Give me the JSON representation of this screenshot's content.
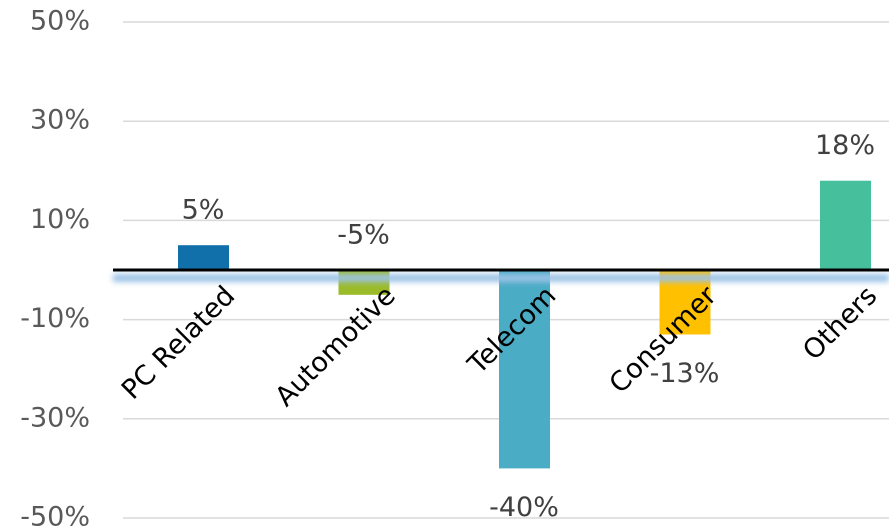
{
  "chart_data": {
    "type": "bar",
    "categories": [
      "PC Related",
      "Automotive",
      "Telecom",
      "Consumer",
      "Others"
    ],
    "values": [
      5,
      -5,
      -40,
      -13,
      18
    ],
    "value_labels": [
      "5%",
      "-5%",
      "-40%",
      "-13%",
      "18%"
    ],
    "colors": [
      "#1170aa",
      "#9bbb2a",
      "#4bacc6",
      "#ffc000",
      "#45bf9c"
    ],
    "ylim": [
      -50,
      50
    ],
    "yticks": [
      {
        "value": 50,
        "label": "50%"
      },
      {
        "value": 30,
        "label": "30%"
      },
      {
        "value": 10,
        "label": "10%"
      },
      {
        "value": -10,
        "label": "-10%"
      },
      {
        "value": -30,
        "label": "-30%"
      },
      {
        "value": -50,
        "label": "-50%"
      }
    ],
    "grid": true
  }
}
